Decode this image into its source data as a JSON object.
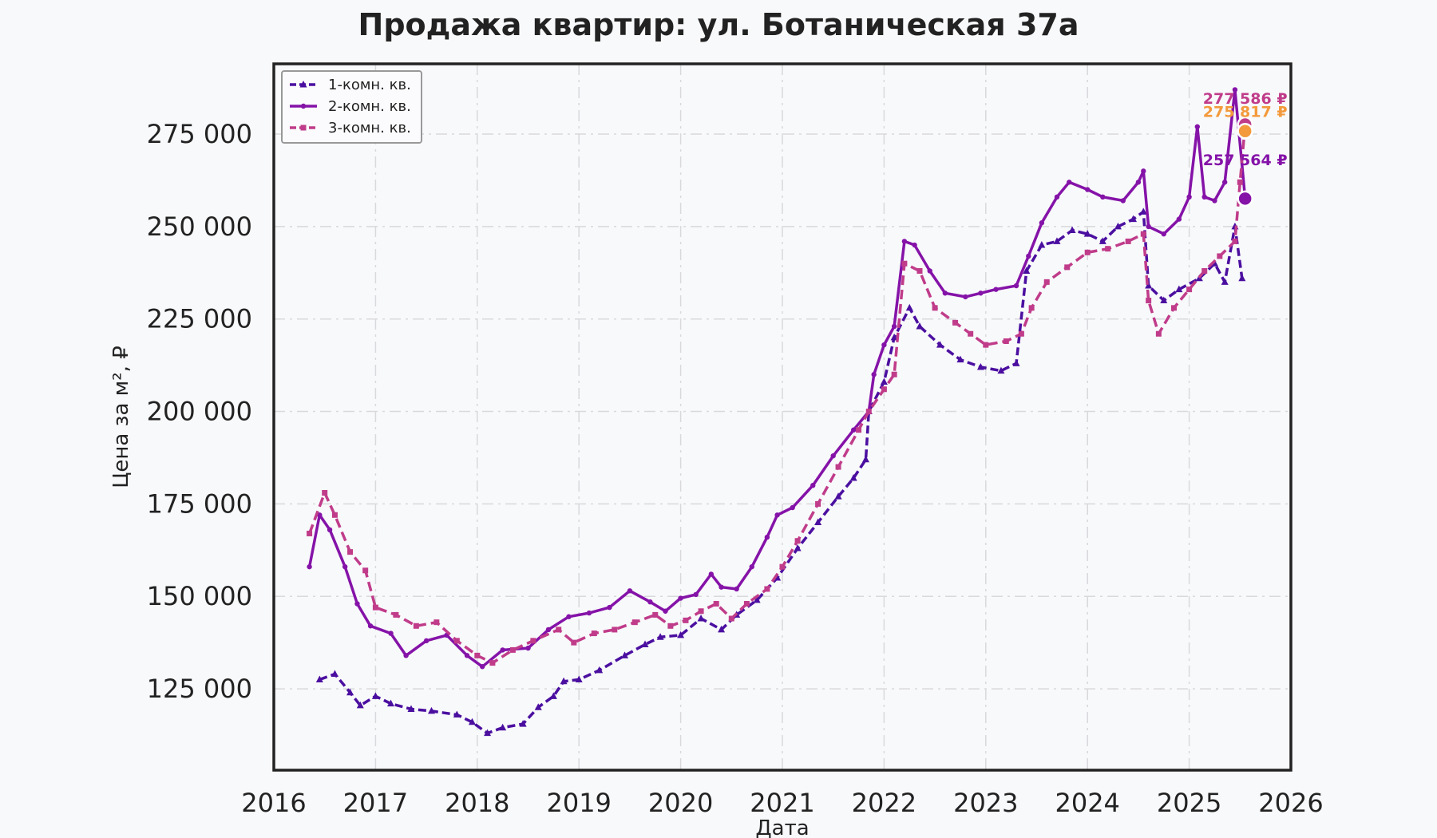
{
  "chart_data": {
    "type": "line",
    "title": "Продажа квартир: ул. Ботаническая 37а",
    "xlabel": "Дата",
    "ylabel": "Цена за м², ₽",
    "xlim": [
      2016,
      2026
    ],
    "ylim": [
      103000,
      294000
    ],
    "xticks": [
      2016,
      2017,
      2018,
      2019,
      2020,
      2021,
      2022,
      2023,
      2024,
      2025,
      2026
    ],
    "xtick_labels": [
      "2016",
      "2017",
      "2018",
      "2019",
      "2020",
      "2021",
      "2022",
      "2023",
      "2024",
      "2025",
      "2026"
    ],
    "yticks": [
      125000,
      150000,
      175000,
      200000,
      225000,
      250000,
      275000
    ],
    "ytick_labels": [
      "125 000",
      "150 000",
      "175 000",
      "200 000",
      "225 000",
      "250 000",
      "275 000"
    ],
    "grid": true,
    "legend_position": "top-left",
    "series": [
      {
        "name": "1-комн. кв.",
        "color": "#4b0fa0",
        "marker": "triangle",
        "points": [
          [
            2016.45,
            127500
          ],
          [
            2016.6,
            129000
          ],
          [
            2016.75,
            124000
          ],
          [
            2016.85,
            120500
          ],
          [
            2017.0,
            123000
          ],
          [
            2017.15,
            121000
          ],
          [
            2017.35,
            119500
          ],
          [
            2017.55,
            119000
          ],
          [
            2017.8,
            118000
          ],
          [
            2017.95,
            116000
          ],
          [
            2018.1,
            113000
          ],
          [
            2018.25,
            114500
          ],
          [
            2018.45,
            115500
          ],
          [
            2018.6,
            120000
          ],
          [
            2018.75,
            123000
          ],
          [
            2018.85,
            127000
          ],
          [
            2019.0,
            127500
          ],
          [
            2019.2,
            130000
          ],
          [
            2019.45,
            134000
          ],
          [
            2019.65,
            137000
          ],
          [
            2019.8,
            139000
          ],
          [
            2020.0,
            139500
          ],
          [
            2020.2,
            144000
          ],
          [
            2020.4,
            141000
          ],
          [
            2020.55,
            145000
          ],
          [
            2020.75,
            149000
          ],
          [
            2020.95,
            155000
          ],
          [
            2021.15,
            163000
          ],
          [
            2021.35,
            170000
          ],
          [
            2021.55,
            177000
          ],
          [
            2021.7,
            182000
          ],
          [
            2021.82,
            187000
          ],
          [
            2021.85,
            200000
          ],
          [
            2022.0,
            208000
          ],
          [
            2022.1,
            220000
          ],
          [
            2022.25,
            228000
          ],
          [
            2022.35,
            223000
          ],
          [
            2022.55,
            218000
          ],
          [
            2022.75,
            214000
          ],
          [
            2022.95,
            212000
          ],
          [
            2023.15,
            211000
          ],
          [
            2023.3,
            213000
          ],
          [
            2023.4,
            238000
          ],
          [
            2023.55,
            245000
          ],
          [
            2023.7,
            246000
          ],
          [
            2023.85,
            249000
          ],
          [
            2024.0,
            248000
          ],
          [
            2024.15,
            246000
          ],
          [
            2024.3,
            250000
          ],
          [
            2024.45,
            252000
          ],
          [
            2024.55,
            254000
          ],
          [
            2024.6,
            234000
          ],
          [
            2024.75,
            230000
          ],
          [
            2024.9,
            233000
          ],
          [
            2025.1,
            236000
          ],
          [
            2025.25,
            240000
          ],
          [
            2025.35,
            235000
          ],
          [
            2025.45,
            250000
          ],
          [
            2025.52,
            236000
          ]
        ]
      },
      {
        "name": "2-комн. кв.",
        "color": "#8513a8",
        "marker": "dot",
        "points": [
          [
            2016.35,
            158000
          ],
          [
            2016.45,
            172000
          ],
          [
            2016.55,
            168000
          ],
          [
            2016.7,
            158000
          ],
          [
            2016.82,
            148000
          ],
          [
            2016.95,
            142000
          ],
          [
            2017.15,
            140000
          ],
          [
            2017.3,
            134000
          ],
          [
            2017.5,
            138000
          ],
          [
            2017.7,
            139500
          ],
          [
            2017.9,
            134000
          ],
          [
            2018.05,
            131000
          ],
          [
            2018.25,
            135500
          ],
          [
            2018.5,
            136000
          ],
          [
            2018.7,
            141000
          ],
          [
            2018.9,
            144500
          ],
          [
            2019.1,
            145500
          ],
          [
            2019.3,
            147000
          ],
          [
            2019.5,
            151500
          ],
          [
            2019.7,
            148500
          ],
          [
            2019.85,
            146000
          ],
          [
            2020.0,
            149500
          ],
          [
            2020.15,
            150500
          ],
          [
            2020.3,
            156000
          ],
          [
            2020.4,
            152500
          ],
          [
            2020.55,
            152000
          ],
          [
            2020.7,
            158000
          ],
          [
            2020.85,
            166000
          ],
          [
            2020.95,
            172000
          ],
          [
            2021.1,
            174000
          ],
          [
            2021.3,
            180000
          ],
          [
            2021.5,
            188000
          ],
          [
            2021.7,
            195000
          ],
          [
            2021.85,
            200000
          ],
          [
            2021.9,
            210000
          ],
          [
            2022.0,
            218000
          ],
          [
            2022.1,
            223000
          ],
          [
            2022.2,
            246000
          ],
          [
            2022.3,
            245000
          ],
          [
            2022.45,
            238000
          ],
          [
            2022.6,
            232000
          ],
          [
            2022.8,
            231000
          ],
          [
            2022.95,
            232000
          ],
          [
            2023.1,
            233000
          ],
          [
            2023.3,
            234000
          ],
          [
            2023.42,
            242000
          ],
          [
            2023.55,
            251000
          ],
          [
            2023.7,
            258000
          ],
          [
            2023.82,
            262000
          ],
          [
            2024.0,
            260000
          ],
          [
            2024.15,
            258000
          ],
          [
            2024.35,
            257000
          ],
          [
            2024.5,
            262000
          ],
          [
            2024.55,
            265000
          ],
          [
            2024.6,
            250000
          ],
          [
            2024.75,
            248000
          ],
          [
            2024.9,
            252000
          ],
          [
            2025.0,
            258000
          ],
          [
            2025.08,
            277000
          ],
          [
            2025.15,
            258000
          ],
          [
            2025.25,
            257000
          ],
          [
            2025.35,
            262000
          ],
          [
            2025.45,
            287000
          ],
          [
            2025.55,
            257564
          ]
        ]
      },
      {
        "name": "3-комн. кв.",
        "color": "#c03c8a",
        "marker": "square",
        "points": [
          [
            2016.35,
            167000
          ],
          [
            2016.5,
            178000
          ],
          [
            2016.6,
            172000
          ],
          [
            2016.75,
            162000
          ],
          [
            2016.9,
            157000
          ],
          [
            2017.0,
            147000
          ],
          [
            2017.2,
            145000
          ],
          [
            2017.4,
            142000
          ],
          [
            2017.6,
            143000
          ],
          [
            2017.8,
            138000
          ],
          [
            2018.0,
            134000
          ],
          [
            2018.15,
            132000
          ],
          [
            2018.35,
            135500
          ],
          [
            2018.55,
            138000
          ],
          [
            2018.8,
            141000
          ],
          [
            2018.95,
            137500
          ],
          [
            2019.15,
            140000
          ],
          [
            2019.35,
            141000
          ],
          [
            2019.55,
            143000
          ],
          [
            2019.75,
            145000
          ],
          [
            2019.9,
            142000
          ],
          [
            2020.05,
            143500
          ],
          [
            2020.2,
            146000
          ],
          [
            2020.35,
            148000
          ],
          [
            2020.5,
            144000
          ],
          [
            2020.65,
            148000
          ],
          [
            2020.85,
            152000
          ],
          [
            2021.0,
            158000
          ],
          [
            2021.15,
            165000
          ],
          [
            2021.35,
            175000
          ],
          [
            2021.55,
            185000
          ],
          [
            2021.75,
            195000
          ],
          [
            2021.85,
            200000
          ],
          [
            2022.0,
            206000
          ],
          [
            2022.1,
            210000
          ],
          [
            2022.2,
            240000
          ],
          [
            2022.35,
            238000
          ],
          [
            2022.5,
            228000
          ],
          [
            2022.7,
            224000
          ],
          [
            2022.85,
            221000
          ],
          [
            2023.0,
            218000
          ],
          [
            2023.2,
            219000
          ],
          [
            2023.35,
            221000
          ],
          [
            2023.45,
            228000
          ],
          [
            2023.6,
            235000
          ],
          [
            2023.8,
            239000
          ],
          [
            2024.0,
            243000
          ],
          [
            2024.2,
            244000
          ],
          [
            2024.4,
            246000
          ],
          [
            2024.55,
            248000
          ],
          [
            2024.6,
            230000
          ],
          [
            2024.7,
            221000
          ],
          [
            2024.85,
            228000
          ],
          [
            2025.0,
            233000
          ],
          [
            2025.15,
            238000
          ],
          [
            2025.3,
            242000
          ],
          [
            2025.45,
            246000
          ],
          [
            2025.5,
            262000
          ],
          [
            2025.55,
            277586
          ]
        ]
      }
    ],
    "end_markers": [
      {
        "label": "277 586 ₽",
        "x": 2025.55,
        "y": 277586,
        "color": "#c03c8a"
      },
      {
        "label": "275 817 ₽",
        "x": 2025.55,
        "y": 275817,
        "color": "#f39a3c"
      },
      {
        "label": "257 564 ₽",
        "x": 2025.55,
        "y": 257564,
        "color": "#8513a8"
      }
    ]
  }
}
